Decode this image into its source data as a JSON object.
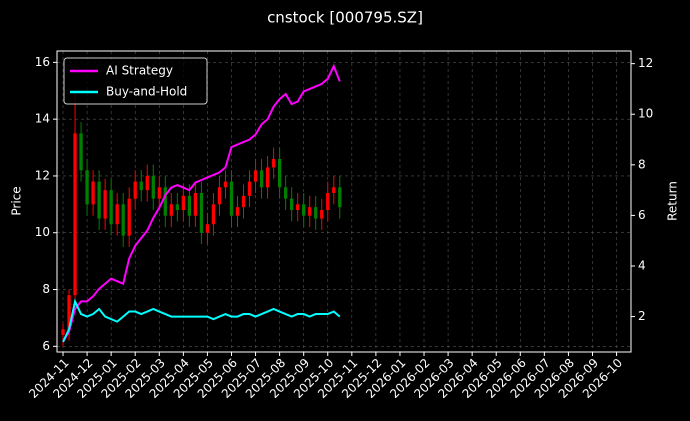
{
  "chart_data": {
    "type": "candlestick",
    "title": "cnstock [000795.SZ]",
    "ylabel": "Price",
    "y2label": "Return",
    "x": [
      0,
      0.25,
      0.5,
      0.75,
      1,
      1.25,
      1.5,
      1.75,
      2,
      2.25,
      2.5,
      2.75,
      3,
      3.25,
      3.5,
      3.75,
      4,
      4.25,
      4.5,
      4.75,
      5,
      5.25,
      5.5,
      5.75,
      6,
      6.25,
      6.5,
      6.75,
      7,
      7.25,
      7.5,
      7.75,
      8,
      8.25,
      8.5,
      8.75,
      9,
      9.25,
      9.5,
      9.75,
      10,
      10.25,
      10.5,
      10.75,
      11,
      11.25,
      11.5
    ],
    "open": [
      6.4,
      6.6,
      7.8,
      13.5,
      12.2,
      11.0,
      11.8,
      10.5,
      11.5,
      10.3,
      11.0,
      9.9,
      11.2,
      11.8,
      11.5,
      12.0,
      11.2,
      11.6,
      10.6,
      11.0,
      10.8,
      11.3,
      10.6,
      11.4,
      10.0,
      10.3,
      11.0,
      11.6,
      11.8,
      10.6,
      10.9,
      11.3,
      11.8,
      12.2,
      11.6,
      12.3,
      12.6,
      11.6,
      11.2,
      10.8,
      11.0,
      10.6,
      10.9,
      10.5,
      10.8,
      11.4,
      11.6
    ],
    "high": [
      6.8,
      8.0,
      15.0,
      13.9,
      12.6,
      12.2,
      12.2,
      11.9,
      11.9,
      11.4,
      11.4,
      11.6,
      12.2,
      12.2,
      12.4,
      12.4,
      12.0,
      12.0,
      11.4,
      11.4,
      11.7,
      11.7,
      11.8,
      11.8,
      10.7,
      11.4,
      12.0,
      12.2,
      12.2,
      11.3,
      11.7,
      12.2,
      12.6,
      12.6,
      12.7,
      13.0,
      13.0,
      12.0,
      11.6,
      11.4,
      11.4,
      11.3,
      11.3,
      11.2,
      11.8,
      12.0,
      12.0
    ],
    "low": [
      6.0,
      6.2,
      7.4,
      11.8,
      10.6,
      10.6,
      10.1,
      10.1,
      9.9,
      9.9,
      9.5,
      9.5,
      10.8,
      11.1,
      11.1,
      10.8,
      10.8,
      10.2,
      10.2,
      10.4,
      10.4,
      10.2,
      10.2,
      9.6,
      9.6,
      9.9,
      10.6,
      11.2,
      10.2,
      10.2,
      10.5,
      10.9,
      11.4,
      11.2,
      11.2,
      11.9,
      11.2,
      10.8,
      10.4,
      10.4,
      10.2,
      10.2,
      10.1,
      10.1,
      10.4,
      11.0,
      10.5
    ],
    "close": [
      6.6,
      7.8,
      13.5,
      12.2,
      11.0,
      11.8,
      10.5,
      11.5,
      10.3,
      11.0,
      9.9,
      11.2,
      11.8,
      11.5,
      12.0,
      11.2,
      11.6,
      10.6,
      11.0,
      10.8,
      11.3,
      10.6,
      11.4,
      10.0,
      10.3,
      11.0,
      11.6,
      11.8,
      10.6,
      10.9,
      11.3,
      11.8,
      12.2,
      11.6,
      12.3,
      12.6,
      11.6,
      11.2,
      10.8,
      11.0,
      10.6,
      10.9,
      10.5,
      10.8,
      11.4,
      11.6,
      10.9
    ],
    "up_color": "#ff0000",
    "down_color": "#008000",
    "series": [
      {
        "name": "AI Strategy",
        "color": "#ff00ff",
        "axis": "y2",
        "values": [
          1.0,
          1.4,
          2.3,
          2.6,
          2.6,
          2.8,
          3.1,
          3.3,
          3.5,
          3.4,
          3.3,
          4.3,
          4.8,
          5.1,
          5.4,
          5.9,
          6.3,
          6.8,
          7.1,
          7.2,
          7.1,
          7.0,
          7.3,
          7.4,
          7.5,
          7.6,
          7.7,
          7.9,
          8.7,
          8.8,
          8.9,
          9.0,
          9.2,
          9.6,
          9.8,
          10.3,
          10.6,
          10.8,
          10.4,
          10.5,
          10.9,
          11.0,
          11.1,
          11.2,
          11.4,
          11.9,
          11.3
        ]
      },
      {
        "name": "Buy-and-Hold",
        "color": "#00ffff",
        "axis": "y2",
        "values": [
          1.0,
          1.5,
          2.6,
          2.1,
          2.0,
          2.1,
          2.3,
          2.0,
          1.9,
          1.8,
          2.0,
          2.2,
          2.2,
          2.1,
          2.2,
          2.3,
          2.2,
          2.1,
          2.0,
          2.0,
          2.0,
          2.0,
          2.0,
          2.0,
          2.0,
          1.9,
          2.0,
          2.1,
          2.0,
          2.0,
          2.1,
          2.1,
          2.0,
          2.1,
          2.2,
          2.3,
          2.2,
          2.1,
          2.0,
          2.1,
          2.1,
          2.0,
          2.1,
          2.1,
          2.1,
          2.2,
          2.0
        ]
      }
    ],
    "xlim": [
      -0.25,
      23.6
    ],
    "xticks": [
      {
        "value": 0,
        "label": "2024-11"
      },
      {
        "value": 1,
        "label": "2024-12"
      },
      {
        "value": 2,
        "label": "2025-01"
      },
      {
        "value": 3,
        "label": "2025-02"
      },
      {
        "value": 4,
        "label": "2025-03"
      },
      {
        "value": 5,
        "label": "2025-04"
      },
      {
        "value": 6,
        "label": "2025-05"
      },
      {
        "value": 7,
        "label": "2025-06"
      },
      {
        "value": 8,
        "label": "2025-07"
      },
      {
        "value": 9,
        "label": "2025-08"
      },
      {
        "value": 10,
        "label": "2025-09"
      },
      {
        "value": 11,
        "label": "2025-10"
      },
      {
        "value": 12,
        "label": "2025-11"
      },
      {
        "value": 13,
        "label": "2025-12"
      },
      {
        "value": 14,
        "label": "2026-01"
      },
      {
        "value": 15,
        "label": "2026-02"
      },
      {
        "value": 16,
        "label": "2026-03"
      },
      {
        "value": 17,
        "label": "2026-04"
      },
      {
        "value": 18,
        "label": "2026-05"
      },
      {
        "value": 19,
        "label": "2026-06"
      },
      {
        "value": 20,
        "label": "2026-07"
      },
      {
        "value": 21,
        "label": "2026-08"
      },
      {
        "value": 22,
        "label": "2026-09"
      },
      {
        "value": 23,
        "label": "2026-10"
      }
    ],
    "ylim": [
      5.8,
      16.4
    ],
    "yticks": [
      6,
      8,
      10,
      12,
      14,
      16
    ],
    "y2lim": [
      0.6,
      12.5
    ],
    "y2ticks": [
      2,
      4,
      6,
      8,
      10,
      12
    ],
    "grid": true,
    "legend": "upper left"
  }
}
